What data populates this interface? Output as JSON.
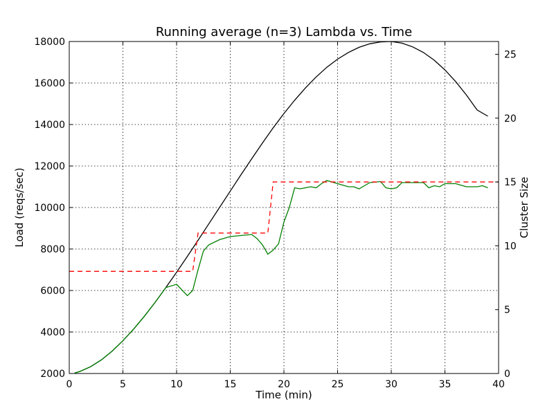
{
  "chart_data": {
    "type": "line",
    "title": "Running average (n=3) Lambda vs. Time",
    "xlabel": "Time (min)",
    "ylabel_left": "Load (reqs/sec)",
    "ylabel_right": "Cluster Size",
    "xlim": [
      0,
      40
    ],
    "ylim_left": [
      2000,
      18000
    ],
    "ylim_right": [
      0,
      26
    ],
    "xticks": [
      0,
      5,
      10,
      15,
      20,
      25,
      30,
      35,
      40
    ],
    "yticks_left": [
      2000,
      4000,
      6000,
      8000,
      10000,
      12000,
      14000,
      16000,
      18000
    ],
    "yticks_right": [
      0,
      5,
      10,
      15,
      20,
      25
    ],
    "grid": true,
    "legend": "none",
    "series": [
      {
        "axis": "left",
        "style": "solid",
        "color": "#000000",
        "x": [
          0.5,
          1,
          2,
          3,
          4,
          5,
          6,
          7,
          8,
          9,
          10,
          11,
          12,
          13,
          14,
          15,
          16,
          17,
          18,
          19,
          20,
          21,
          22,
          23,
          24,
          25,
          26,
          27,
          28,
          29,
          30,
          31,
          32,
          33,
          34,
          35,
          36,
          37,
          38,
          39
        ],
        "y": [
          2020,
          2100,
          2330,
          2660,
          3080,
          3580,
          4140,
          4760,
          5430,
          6140,
          6880,
          7640,
          8420,
          9210,
          10000,
          10790,
          11580,
          12350,
          13110,
          13840,
          14530,
          15170,
          15760,
          16290,
          16760,
          17150,
          17470,
          17720,
          17890,
          17980,
          18000,
          17920,
          17740,
          17470,
          17100,
          16630,
          16070,
          15420,
          14700,
          14400
        ]
      },
      {
        "axis": "left",
        "style": "solid",
        "color": "#007f00",
        "x": [
          0.5,
          1,
          2,
          3,
          4,
          5,
          6,
          7,
          8,
          9,
          10,
          11,
          11.5,
          12,
          12.5,
          13,
          14,
          15,
          16,
          17,
          17.5,
          18,
          18.5,
          19,
          19.5,
          20,
          20.5,
          21,
          21.5,
          22,
          22.5,
          23,
          23.5,
          24,
          25,
          26,
          26.5,
          27,
          27.5,
          28,
          29,
          29.5,
          30,
          30.5,
          31,
          31.5,
          32,
          32.5,
          33,
          33.5,
          34,
          34.5,
          35,
          35.5,
          36,
          37,
          38,
          38.5,
          39
        ],
        "y": [
          2020,
          2100,
          2330,
          2660,
          3080,
          3580,
          4140,
          4760,
          5430,
          6140,
          6300,
          5750,
          6000,
          7000,
          7900,
          8200,
          8450,
          8600,
          8650,
          8700,
          8500,
          8200,
          7750,
          7950,
          8250,
          9300,
          10000,
          10950,
          10900,
          10950,
          11000,
          10950,
          11150,
          11300,
          11150,
          11000,
          11000,
          10900,
          11050,
          11200,
          11250,
          10950,
          10900,
          10950,
          11200,
          11200,
          11200,
          11200,
          11200,
          10950,
          11050,
          11000,
          11150,
          11150,
          11150,
          11000,
          11000,
          11050,
          10950
        ]
      },
      {
        "axis": "right",
        "style": "dashed",
        "color": "#ff0000",
        "x": [
          0,
          11.5,
          12,
          18.5,
          19,
          40
        ],
        "y": [
          8,
          8,
          11,
          11,
          15,
          15
        ]
      }
    ]
  }
}
